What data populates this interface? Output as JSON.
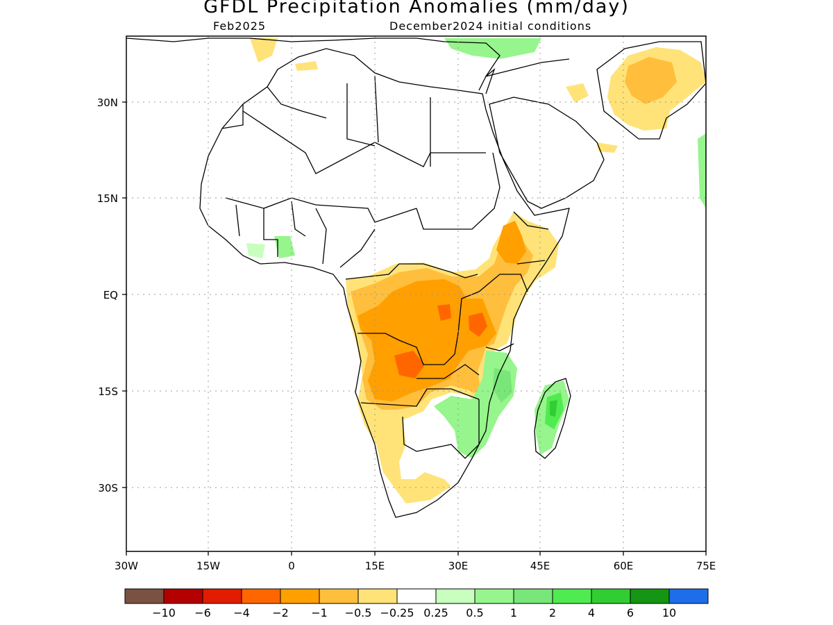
{
  "title": "GFDL Precipitation Anomalies (mm/day)",
  "forecast_month": "Feb2025",
  "initial_conditions": "December2024 initial conditions",
  "map": {
    "lon_labels": [
      "30W",
      "15W",
      "0",
      "15E",
      "30E",
      "45E",
      "60E",
      "75E"
    ],
    "lat_labels": [
      "30N",
      "15N",
      "EQ",
      "15S",
      "30S"
    ]
  },
  "legend": {
    "colors": [
      "#7b5142",
      "#b40000",
      "#e11c00",
      "#ff6600",
      "#ff9f00",
      "#ffbe3c",
      "#ffe378",
      "#ffffff",
      "#c8ffbe",
      "#96f58c",
      "#78e678",
      "#50eb50",
      "#32cd32",
      "#149614",
      "#1e6eeb"
    ],
    "labels": [
      "−10",
      "−6",
      "−4",
      "−2",
      "−1",
      "−0.5",
      "−0.25",
      "0.25",
      "0.5",
      "1",
      "2",
      "4",
      "6",
      "10"
    ]
  }
}
